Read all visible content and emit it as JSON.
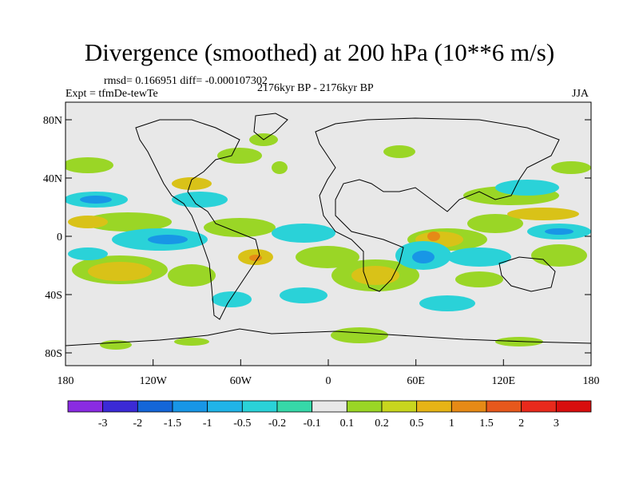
{
  "title": "Divergence (smoothed) at 200 hPa (10**6 m/s)",
  "stats": "rmsd= 0.166951 diff= -0.000107302",
  "experiment": "Expt = tfmDe-tewTe",
  "period": "2176kyr BP - 2176kyr BP",
  "season": "JJA",
  "map": {
    "lat_ticks": [
      "80N",
      "40N",
      "0",
      "40S",
      "80S"
    ],
    "lon_ticks": [
      "180",
      "120W",
      "60W",
      "0",
      "60E",
      "120E",
      "180"
    ],
    "ocean_color": "#e8e8e8",
    "coastline_color": "#000000"
  },
  "colorbar": {
    "labels": [
      "-3",
      "-2",
      "-1.5",
      "-1",
      "-0.5",
      "-0.2",
      "-0.1",
      "0.1",
      "0.2",
      "0.5",
      "1",
      "1.5",
      "2",
      "3"
    ],
    "colors": [
      "#8a2be2",
      "#3b2ad6",
      "#1466d8",
      "#1896e6",
      "#20b4e8",
      "#2ad2d8",
      "#36d8a8",
      "#e8e8e8",
      "#9ad626",
      "#c8d61e",
      "#e6b416",
      "#e68a16",
      "#e6581c",
      "#e82a1c",
      "#d80e0e"
    ]
  }
}
